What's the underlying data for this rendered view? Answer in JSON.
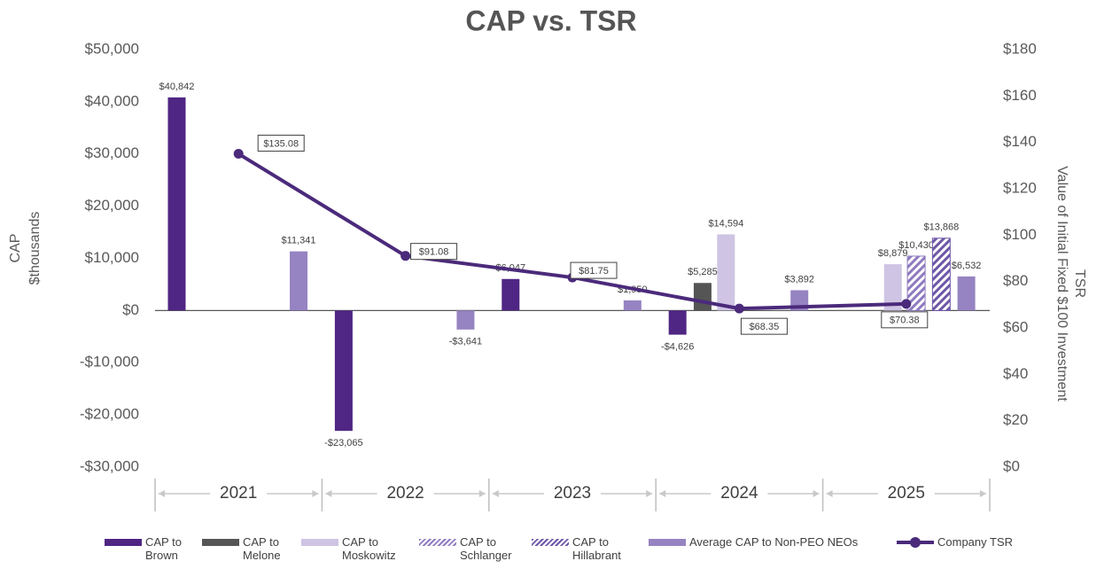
{
  "chart_data": {
    "type": "bar",
    "title": "CAP vs. TSR",
    "y_label": "CAP",
    "y_sublabel": "$thousands",
    "y2_label": "TSR",
    "y2_sublabel": "Value of Initial Fixed $100 Investment",
    "categories": [
      "2021",
      "2022",
      "2023",
      "2024",
      "2025"
    ],
    "ylim": [
      -30000,
      50000
    ],
    "yticks": [
      {
        "value": -30000,
        "label": "-$30,000"
      },
      {
        "value": -20000,
        "label": "-$20,000"
      },
      {
        "value": -10000,
        "label": "-$10,000"
      },
      {
        "value": 0,
        "label": "$0"
      },
      {
        "value": 10000,
        "label": "$10,000"
      },
      {
        "value": 20000,
        "label": "$20,000"
      },
      {
        "value": 30000,
        "label": "$30,000"
      },
      {
        "value": 40000,
        "label": "$40,000"
      },
      {
        "value": 50000,
        "label": "$50,000"
      }
    ],
    "y2lim": [
      0,
      180
    ],
    "y2ticks": [
      {
        "value": 0,
        "label": "$0"
      },
      {
        "value": 20,
        "label": "$20"
      },
      {
        "value": 40,
        "label": "$40"
      },
      {
        "value": 60,
        "label": "$60"
      },
      {
        "value": 80,
        "label": "$80"
      },
      {
        "value": 100,
        "label": "$100"
      },
      {
        "value": 120,
        "label": "$120"
      },
      {
        "value": 140,
        "label": "$140"
      },
      {
        "value": 160,
        "label": "$160"
      },
      {
        "value": 180,
        "label": "$180"
      }
    ],
    "series": [
      {
        "name": "CAP to Brown",
        "color": "#4f2683",
        "values": [
          40842,
          -23065,
          6047,
          -4626,
          null
        ],
        "value_labels": [
          "$40,842",
          "-$23,065",
          "$6,047",
          "-$4,626",
          null
        ]
      },
      {
        "name": "CAP to Melone",
        "color": "#555555",
        "values": [
          null,
          null,
          null,
          5285,
          null
        ],
        "value_labels": [
          null,
          null,
          null,
          "$5,285",
          null
        ]
      },
      {
        "name": "CAP to Moskowitz",
        "color": "#cfc4e3",
        "values": [
          null,
          null,
          null,
          14594,
          8879
        ],
        "value_labels": [
          null,
          null,
          null,
          "$14,594",
          "$8,879"
        ]
      },
      {
        "name": "CAP to Schlanger",
        "color": "#8f7bc0",
        "hatch": true,
        "values": [
          null,
          null,
          null,
          null,
          10430
        ],
        "value_labels": [
          null,
          null,
          null,
          null,
          "$10,430"
        ]
      },
      {
        "name": "CAP to Hillabrant",
        "color": "#6e58a8",
        "hatch": true,
        "values": [
          null,
          null,
          null,
          null,
          13868
        ],
        "value_labels": [
          null,
          null,
          null,
          null,
          "$13,868"
        ]
      },
      {
        "name": "Average CAP to Non-PEO NEOs",
        "color": "#9683c2",
        "values": [
          11341,
          -3641,
          1950,
          3892,
          6532
        ],
        "value_labels": [
          "$11,341",
          "-$3,641",
          "$1,950",
          "$3,892",
          "$6,532"
        ]
      },
      {
        "name": "Company TSR",
        "color": "#4b2a7b",
        "type": "line",
        "axis": "y2",
        "values": [
          135.08,
          91.08,
          81.75,
          68.35,
          70.38
        ],
        "value_labels": [
          "$135.08",
          "$91.08",
          "$81.75",
          "$68.35",
          "$70.38"
        ]
      }
    ]
  }
}
